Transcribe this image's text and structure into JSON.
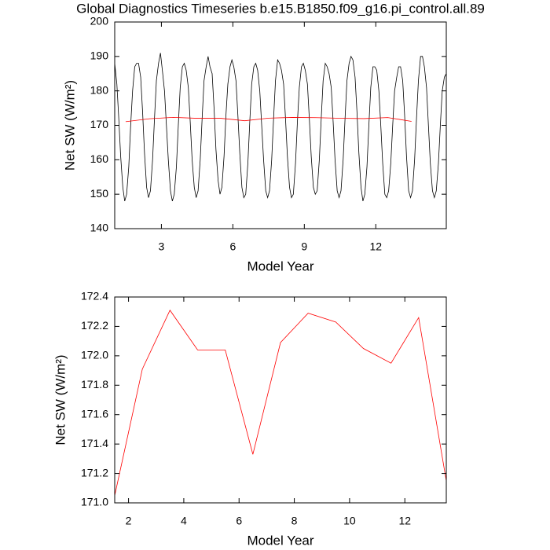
{
  "chart_data": [
    {
      "type": "line",
      "title": "Global Diagnostics Timeseries b.e15.B1850.f09_g16.pi_control.all.89",
      "xlabel": "Model Year",
      "ylabel": "Net SW (W/m²)",
      "xlim": [
        1.04,
        14.96
      ],
      "xticks": [
        3,
        6,
        9,
        12
      ],
      "ylim": [
        140,
        200
      ],
      "yticks": [
        140,
        150,
        160,
        170,
        180,
        190,
        200
      ],
      "series": [
        {
          "color": "#000000",
          "x": [
            1.04,
            1.13,
            1.21,
            1.29,
            1.38,
            1.46,
            1.54,
            1.63,
            1.71,
            1.79,
            1.88,
            1.96,
            2.04,
            2.13,
            2.21,
            2.29,
            2.38,
            2.46,
            2.54,
            2.63,
            2.71,
            2.79,
            2.88,
            2.96,
            3.04,
            3.13,
            3.21,
            3.29,
            3.38,
            3.46,
            3.54,
            3.63,
            3.71,
            3.79,
            3.88,
            3.96,
            4.04,
            4.13,
            4.21,
            4.29,
            4.38,
            4.46,
            4.54,
            4.63,
            4.71,
            4.79,
            4.88,
            4.96,
            5.04,
            5.13,
            5.21,
            5.29,
            5.38,
            5.46,
            5.54,
            5.63,
            5.71,
            5.79,
            5.88,
            5.96,
            6.04,
            6.13,
            6.21,
            6.29,
            6.38,
            6.46,
            6.54,
            6.63,
            6.71,
            6.79,
            6.88,
            6.96,
            7.04,
            7.13,
            7.21,
            7.29,
            7.38,
            7.46,
            7.54,
            7.63,
            7.71,
            7.79,
            7.88,
            7.96,
            8.04,
            8.13,
            8.21,
            8.29,
            8.38,
            8.46,
            8.54,
            8.63,
            8.71,
            8.79,
            8.88,
            8.96,
            9.04,
            9.13,
            9.21,
            9.29,
            9.38,
            9.46,
            9.54,
            9.63,
            9.71,
            9.79,
            9.88,
            9.96,
            10.04,
            10.13,
            10.21,
            10.29,
            10.38,
            10.46,
            10.54,
            10.63,
            10.71,
            10.79,
            10.88,
            10.96,
            11.04,
            11.13,
            11.21,
            11.29,
            11.38,
            11.46,
            11.54,
            11.63,
            11.71,
            11.79,
            11.88,
            11.96,
            12.04,
            12.13,
            12.21,
            12.29,
            12.38,
            12.46,
            12.54,
            12.63,
            12.71,
            12.79,
            12.88,
            12.96,
            13.04,
            13.13,
            13.21,
            13.29,
            13.38,
            13.46,
            13.54,
            13.63,
            13.71,
            13.79,
            13.88,
            13.96,
            14.04,
            14.13,
            14.21,
            14.29,
            14.38,
            14.46,
            14.54,
            14.63,
            14.71,
            14.79,
            14.88,
            14.96
          ],
          "values": [
            188,
            182,
            172,
            161,
            152,
            148,
            150,
            158,
            170,
            180,
            187,
            188,
            188,
            184,
            174,
            162,
            152,
            149,
            151,
            160,
            172,
            183,
            188,
            191,
            186,
            180,
            170,
            160,
            151,
            148,
            150,
            158,
            170,
            181,
            187,
            188,
            186,
            181,
            171,
            160,
            152,
            149,
            151,
            160,
            172,
            183,
            187,
            190,
            187,
            185,
            175,
            163,
            154,
            150,
            152,
            161,
            173,
            182,
            187,
            189,
            187,
            183,
            173,
            162,
            152,
            149,
            150,
            159,
            171,
            182,
            187,
            188,
            186,
            180,
            170,
            160,
            151,
            149,
            151,
            160,
            172,
            183,
            189,
            188,
            186,
            182,
            172,
            161,
            152,
            149,
            150,
            159,
            171,
            181,
            187,
            188,
            186,
            182,
            172,
            161,
            152,
            150,
            151,
            160,
            172,
            183,
            188,
            187,
            185,
            181,
            171,
            160,
            151,
            149,
            151,
            160,
            172,
            183,
            188,
            190,
            189,
            184,
            174,
            162,
            152,
            148,
            150,
            158,
            170,
            181,
            187,
            187,
            186,
            180,
            170,
            159,
            150,
            149,
            151,
            159,
            170,
            180,
            184,
            187,
            187,
            183,
            173,
            161,
            151,
            149,
            151,
            160,
            172,
            183,
            190,
            190,
            187,
            181,
            170,
            159,
            151,
            149,
            151,
            159,
            170,
            180,
            184,
            185
          ]
        },
        {
          "color": "#ff0000",
          "x": [
            1.5,
            2.5,
            3.5,
            4.5,
            5.5,
            6.5,
            7.5,
            8.5,
            9.5,
            10.5,
            11.5,
            12.5,
            13.5
          ],
          "values": [
            171.05,
            171.91,
            172.31,
            172.04,
            172.04,
            171.33,
            172.09,
            172.29,
            172.23,
            172.05,
            171.95,
            172.26,
            171.15
          ]
        }
      ]
    },
    {
      "type": "line",
      "xlabel": "Model Year",
      "ylabel": "Net SW (W/m²)",
      "xlim": [
        1.5,
        13.5
      ],
      "xticks": [
        2,
        4,
        6,
        8,
        10,
        12
      ],
      "ylim": [
        171,
        172.4
      ],
      "yticks": [
        {
          "value": 171,
          "label": "171.0"
        },
        {
          "value": 171.2,
          "label": "171.2"
        },
        {
          "value": 171.4,
          "label": "171.4"
        },
        {
          "value": 171.6,
          "label": "171.6"
        },
        {
          "value": 171.8,
          "label": "171.8"
        },
        {
          "value": 172,
          "label": "172.0"
        },
        {
          "value": 172.2,
          "label": "172.2"
        },
        {
          "value": 172.4,
          "label": "172.4"
        }
      ],
      "series": [
        {
          "color": "#ff0000",
          "x": [
            1.5,
            2.5,
            3.5,
            4.5,
            5.5,
            6.5,
            7.5,
            8.5,
            9.5,
            10.5,
            11.5,
            12.5,
            13.5
          ],
          "values": [
            171.05,
            171.91,
            172.31,
            172.04,
            172.04,
            171.33,
            172.09,
            172.29,
            172.23,
            172.05,
            171.95,
            172.26,
            171.15
          ]
        }
      ]
    }
  ]
}
